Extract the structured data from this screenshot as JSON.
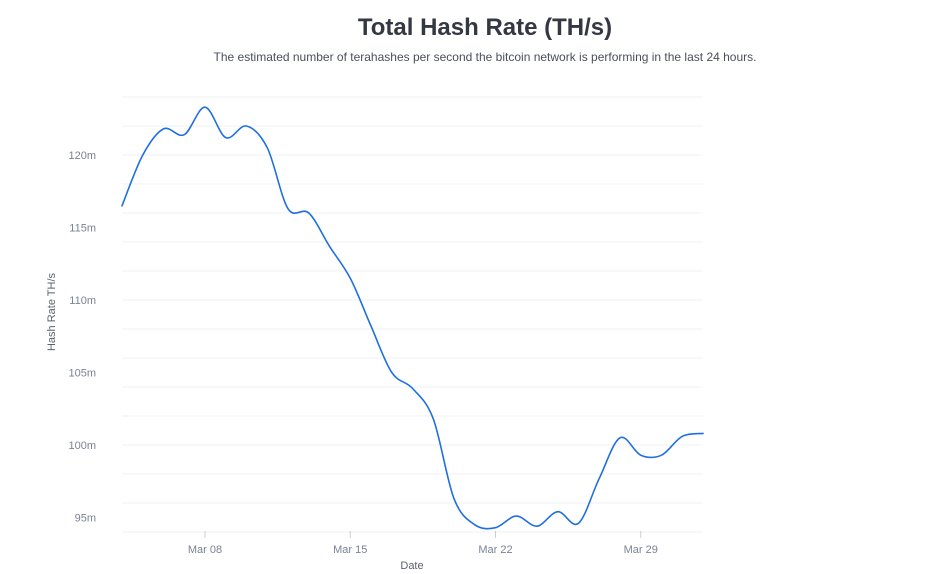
{
  "chart_data": {
    "type": "line",
    "title": "Total Hash Rate (TH/s)",
    "subtitle": "The estimated number of terahashes per second the bitcoin network is performing in the last 24 hours.",
    "xlabel": "Date",
    "ylabel": "Hash Rate TH/s",
    "x_ticks": [
      {
        "label": "Mar 08",
        "day": 8
      },
      {
        "label": "Mar 15",
        "day": 15
      },
      {
        "label": "Mar 22",
        "day": 22
      },
      {
        "label": "Mar 29",
        "day": 29
      }
    ],
    "y_ticks": [
      {
        "label": "95m",
        "value": 95
      },
      {
        "label": "100m",
        "value": 100
      },
      {
        "label": "105m",
        "value": 105
      },
      {
        "label": "110m",
        "value": 110
      },
      {
        "label": "115m",
        "value": 115
      },
      {
        "label": "120m",
        "value": 120
      }
    ],
    "y_unit": "m",
    "xlim": [
      "Mar 04",
      "Mar 32"
    ],
    "ylim": [
      94,
      124
    ],
    "grid": true,
    "line_color": "#1f6fe0",
    "series": [
      {
        "x": [
          "Mar 04",
          "Mar 05",
          "Mar 06",
          "Mar 07",
          "Mar 08",
          "Mar 09",
          "Mar 10",
          "Mar 11",
          "Mar 12",
          "Mar 13",
          "Mar 14",
          "Mar 15",
          "Mar 16",
          "Mar 17",
          "Mar 18",
          "Mar 19",
          "Mar 20",
          "Mar 21",
          "Mar 22",
          "Mar 23",
          "Mar 24",
          "Mar 25",
          "Mar 26",
          "Mar 27",
          "Mar 28",
          "Mar 29",
          "Mar 30",
          "Mar 31",
          "Mar 32"
        ],
        "values": [
          116.5,
          120.0,
          121.8,
          121.4,
          123.3,
          121.2,
          122.0,
          120.5,
          116.3,
          116.0,
          113.7,
          111.5,
          108.2,
          105.0,
          103.9,
          101.8,
          96.3,
          94.5,
          94.3,
          95.1,
          94.4,
          95.4,
          94.6,
          97.7,
          100.5,
          99.3,
          99.3,
          100.6,
          100.8
        ]
      }
    ]
  }
}
